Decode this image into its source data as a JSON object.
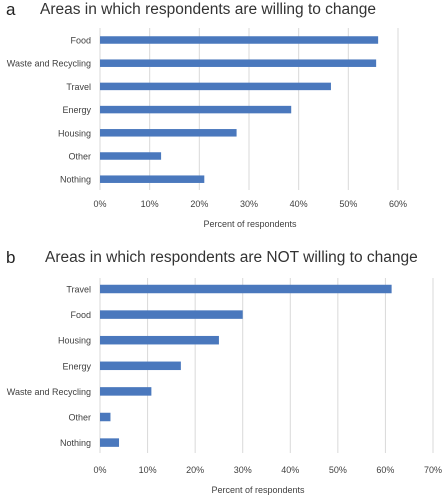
{
  "colors": {
    "bar": "#4a78bd",
    "grid": "#d9d9d9",
    "text": "#404040"
  },
  "chart_data": [
    {
      "type": "bar",
      "orientation": "horizontal",
      "panel_label": "a",
      "title": "Areas in which respondents are willing to change",
      "xlabel": "Percent of respondents",
      "categories": [
        "Food",
        "Waste and Recycling",
        "Travel",
        "Energy",
        "Housing",
        "Other",
        "Nothing"
      ],
      "values": [
        56,
        55.6,
        46.5,
        38.5,
        27.5,
        12.3,
        21
      ],
      "xlim": [
        0,
        60
      ],
      "ticks": [
        0,
        10,
        20,
        30,
        40,
        50,
        60
      ],
      "tick_labels": [
        "0%",
        "10%",
        "20%",
        "30%",
        "40%",
        "50%",
        "60%"
      ],
      "grid": true,
      "legend": "none"
    },
    {
      "type": "bar",
      "orientation": "horizontal",
      "panel_label": "b",
      "title": "Areas in which respondents are NOT willing to change",
      "xlabel": "Percent of respondents",
      "categories": [
        "Travel",
        "Food",
        "Housing",
        "Energy",
        "Waste and Recycling",
        "Other",
        "Nothing"
      ],
      "values": [
        61.3,
        30,
        25,
        17,
        10.8,
        2.2,
        4
      ],
      "xlim": [
        0,
        70
      ],
      "ticks": [
        0,
        10,
        20,
        30,
        40,
        50,
        60,
        70
      ],
      "tick_labels": [
        "0%",
        "10%",
        "20%",
        "30%",
        "40%",
        "50%",
        "60%",
        "70%"
      ],
      "grid": true,
      "legend": "none"
    }
  ]
}
